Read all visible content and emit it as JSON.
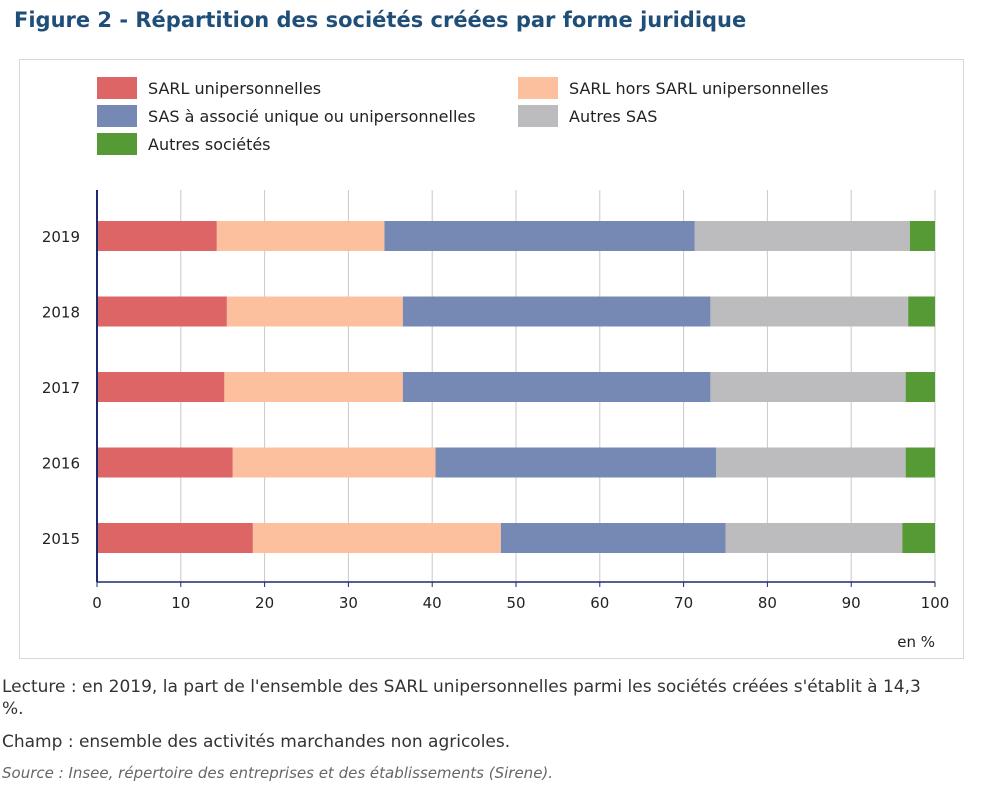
{
  "title": "Figure 2 - Répartition des sociétés créées par forme juridique",
  "chart_data": {
    "type": "bar",
    "orientation": "horizontal",
    "stacked": true,
    "categories": [
      "2019",
      "2018",
      "2017",
      "2016",
      "2015"
    ],
    "series": [
      {
        "name": "SARL unipersonnelles",
        "color": "#dd6566",
        "values": [
          14.3,
          15.5,
          15.2,
          16.2,
          18.6
        ]
      },
      {
        "name": "SARL hors SARL unipersonnelles",
        "color": "#fcc09e",
        "values": [
          20.0,
          21.0,
          21.3,
          24.2,
          29.6
        ]
      },
      {
        "name": "SAS à associé unique ou unipersonnelles",
        "color": "#7589b4",
        "values": [
          37.0,
          36.7,
          36.7,
          33.5,
          26.8
        ]
      },
      {
        "name": "Autres SAS",
        "color": "#bcbcbf",
        "values": [
          25.7,
          23.6,
          23.3,
          22.6,
          21.1
        ]
      },
      {
        "name": "Autres sociétés",
        "color": "#569a36",
        "values": [
          3.0,
          3.2,
          3.5,
          3.5,
          3.9
        ]
      }
    ],
    "xlim": [
      0,
      100
    ],
    "xticks": [
      "0",
      "10",
      "20",
      "30",
      "40",
      "50",
      "60",
      "70",
      "80",
      "90",
      "100"
    ],
    "unit_label": "en %",
    "grid": "vertical",
    "legend_position": "top"
  },
  "notes": {
    "lecture": "Lecture : en 2019, la part de l'ensemble des SARL unipersonnelles parmi les sociétés créées s'établit à 14,3 %.",
    "champ": "Champ : ensemble des activités marchandes non agricoles.",
    "source": "Source : Insee, répertoire des entreprises et des établissements (Sirene)."
  }
}
